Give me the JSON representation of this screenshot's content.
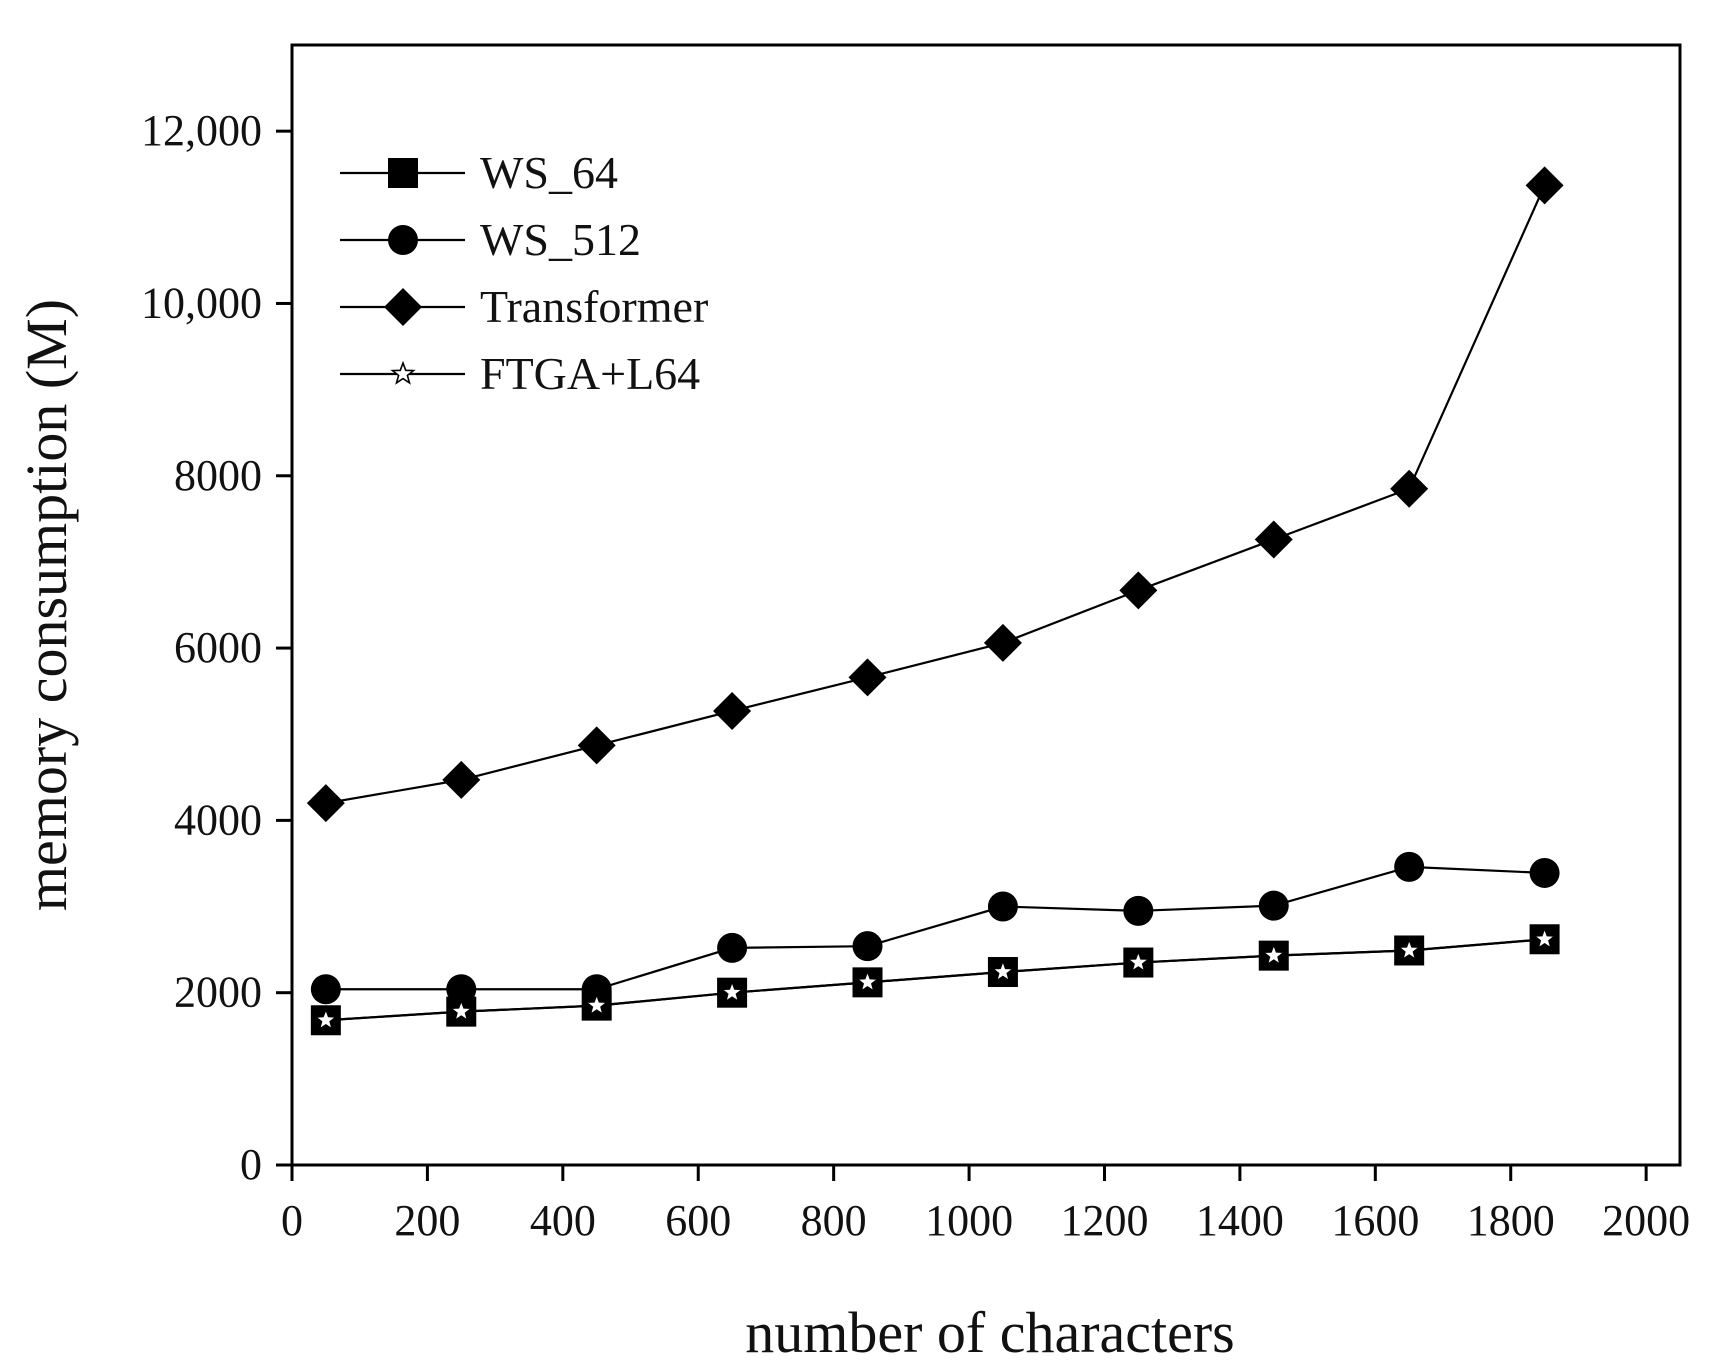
{
  "chart_data": {
    "type": "line",
    "title": "",
    "xlabel": "number of characters",
    "ylabel": "memory consumption (M)",
    "xlim": [
      0,
      2050
    ],
    "ylim": [
      0,
      13000
    ],
    "x_ticks": [
      0,
      200,
      400,
      600,
      800,
      1000,
      1200,
      1400,
      1600,
      1800,
      2000
    ],
    "x_tick_labels": [
      "0",
      "200",
      "400",
      "600",
      "800",
      "1000",
      "1200",
      "1400",
      "1600",
      "1800",
      "2000"
    ],
    "y_ticks": [
      0,
      2000,
      4000,
      6000,
      8000,
      10000,
      12000
    ],
    "y_tick_labels": [
      "0",
      "2000",
      "4000",
      "6000",
      "8000",
      "10,000",
      "12,000"
    ],
    "x": [
      50,
      250,
      450,
      650,
      850,
      1050,
      1250,
      1450,
      1650,
      1850
    ],
    "legend_position": "top-left",
    "series": [
      {
        "name": "WS_64",
        "marker": "square",
        "values": [
          1680,
          1780,
          1850,
          2000,
          2120,
          2240,
          2350,
          2430,
          2490,
          2620
        ]
      },
      {
        "name": "WS_512",
        "marker": "circle",
        "values": [
          2040,
          2040,
          2040,
          2520,
          2540,
          3000,
          2950,
          3010,
          3460,
          3390
        ]
      },
      {
        "name": "Transformer",
        "marker": "diamond",
        "values": [
          4200,
          4470,
          4870,
          5270,
          5660,
          6060,
          6670,
          7260,
          7850,
          11370
        ]
      },
      {
        "name": "FTGA+L64",
        "marker": "star",
        "values": [
          1680,
          1780,
          1850,
          2000,
          2120,
          2240,
          2350,
          2430,
          2490,
          2620
        ]
      }
    ]
  }
}
